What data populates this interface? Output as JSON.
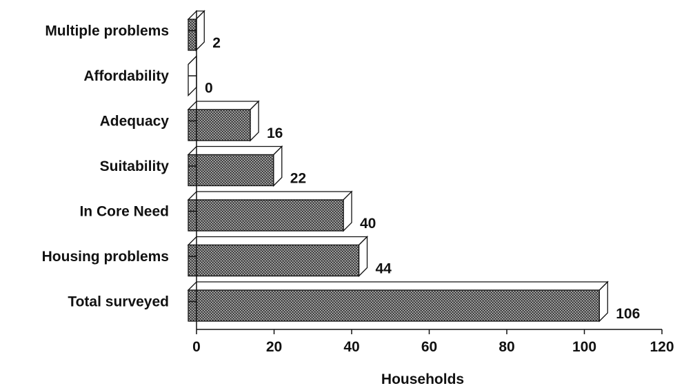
{
  "chart_data": {
    "type": "bar",
    "orientation": "horizontal",
    "categories": [
      "Multiple problems",
      "Affordability",
      "Adequacy",
      "Suitability",
      "In Core Need",
      "Housing problems",
      "Total surveyed"
    ],
    "values": [
      2,
      0,
      16,
      22,
      40,
      44,
      106
    ],
    "value_labels": [
      "2",
      "0",
      "16",
      "22",
      "40",
      "44",
      "106"
    ],
    "xlabel": "Households",
    "ylabel": "",
    "title": "",
    "xlim": [
      0,
      120
    ],
    "xticks": [
      0,
      20,
      40,
      60,
      80,
      100,
      120
    ],
    "xtick_labels": [
      "0",
      "20",
      "40",
      "60",
      "80",
      "100",
      "120"
    ],
    "grid": false,
    "legend": "none",
    "bar_style": "3d-stippled",
    "colors": {
      "bar_front": "#6a6a6a",
      "bar_dark": "#3d3d3d",
      "bar_side": "#ffffff",
      "ink": "#111111"
    }
  }
}
